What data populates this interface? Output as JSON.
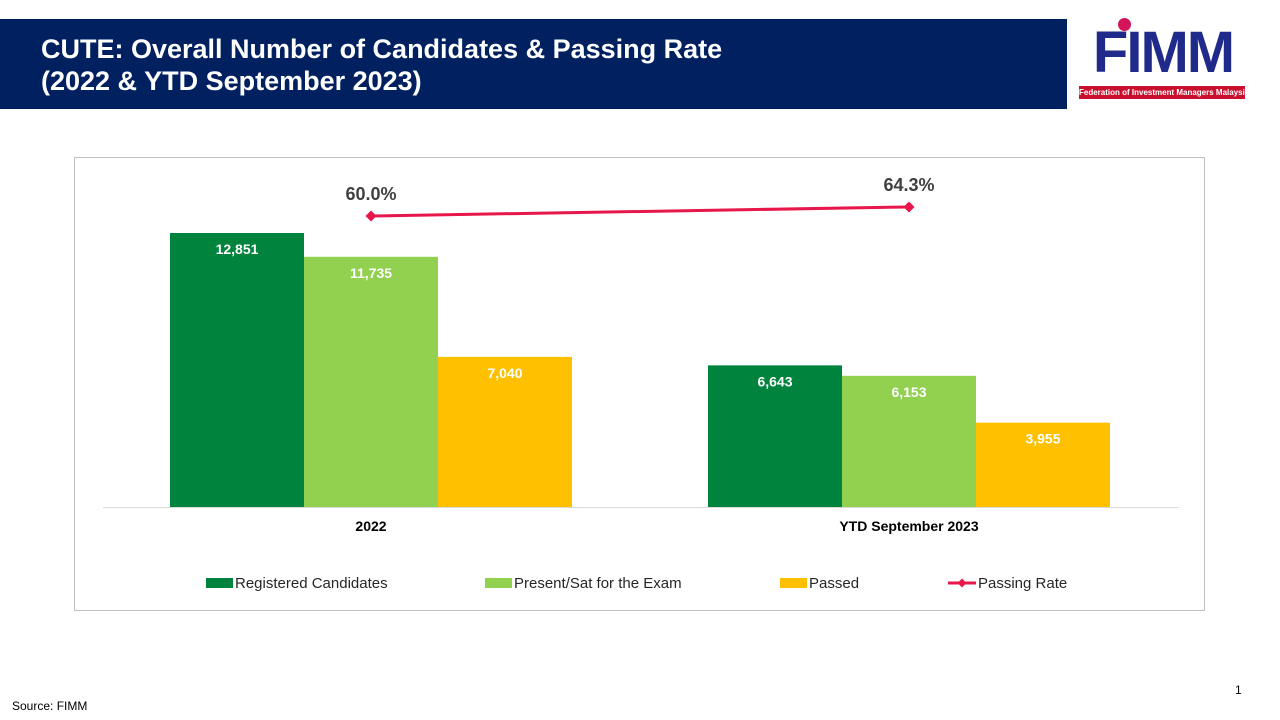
{
  "header": {
    "title_line1": "CUTE: Overall Number of Candidates & Passing Rate",
    "title_line2": "(2022 & YTD September 2023)"
  },
  "logo": {
    "text": "FIMM",
    "tagline": "Federation of Investment Managers Malaysia"
  },
  "footer": {
    "source": "Source: FIMM",
    "page_number": "1"
  },
  "chart_data": {
    "type": "bar",
    "categories": [
      "2022",
      "YTD September 2023"
    ],
    "series": [
      {
        "name": "Registered Candidates",
        "values": [
          12851,
          6643
        ],
        "labels": [
          "12,851",
          "6,643"
        ],
        "color": "#00843d"
      },
      {
        "name": "Present/Sat for the Exam",
        "values": [
          11735,
          6153
        ],
        "labels": [
          "11,735",
          "6,153"
        ],
        "color": "#92d050"
      },
      {
        "name": "Passed",
        "values": [
          7040,
          3955
        ],
        "labels": [
          "7,040",
          "3,955"
        ],
        "color": "#ffc000"
      }
    ],
    "line_series": {
      "name": "Passing Rate",
      "values": [
        60.0,
        64.3
      ],
      "labels": [
        "60.0%",
        "64.3%"
      ],
      "color": "#e8174b"
    },
    "legend_position": "bottom",
    "grid": false
  }
}
